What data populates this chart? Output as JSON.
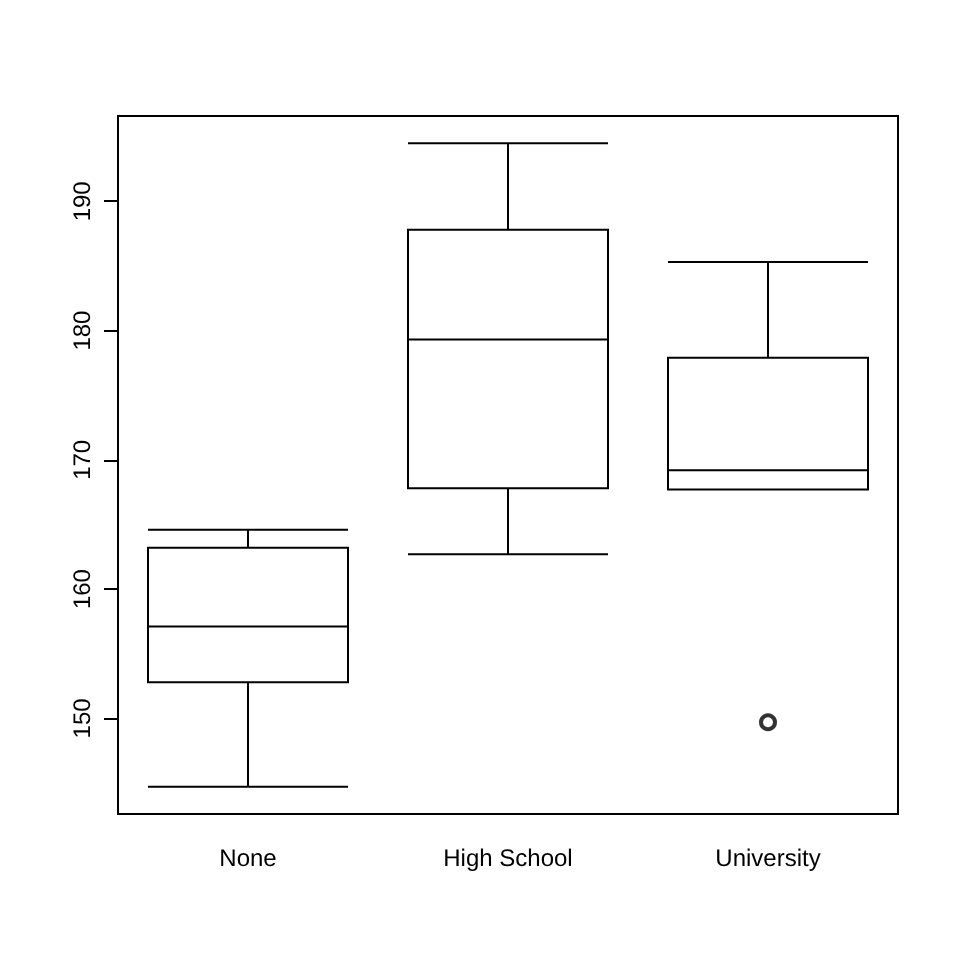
{
  "chart_data": {
    "type": "box",
    "categories": [
      "None",
      "High School",
      "University"
    ],
    "boxes": [
      {
        "low": 144.7,
        "q1": 152.8,
        "median": 157.1,
        "q3": 163.2,
        "high": 164.6
      },
      {
        "low": 162.7,
        "q1": 167.8,
        "median": 179.3,
        "q3": 187.8,
        "high": 194.5
      },
      {
        "low": 167.7,
        "q1": 167.7,
        "median": 169.2,
        "q3": 177.9,
        "high": 185.3,
        "outliers": [
          149.7
        ]
      }
    ],
    "color": "#000000",
    "ylim": [
      142.6,
      196.6
    ],
    "yticks": [
      150,
      160,
      170,
      180,
      190
    ],
    "grid": false
  }
}
